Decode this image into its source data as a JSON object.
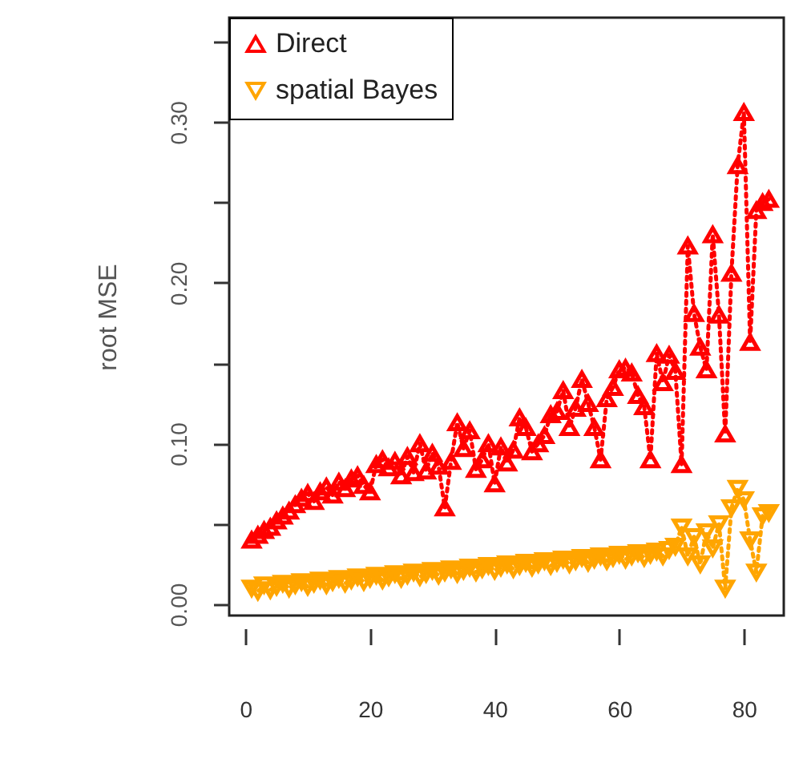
{
  "chart_data": {
    "type": "line",
    "ylabel": "root MSE",
    "x": [
      1,
      2,
      3,
      4,
      5,
      6,
      7,
      8,
      9,
      10,
      11,
      12,
      13,
      14,
      15,
      16,
      17,
      18,
      19,
      20,
      21,
      22,
      23,
      24,
      25,
      26,
      27,
      28,
      29,
      30,
      31,
      32,
      33,
      34,
      35,
      36,
      37,
      38,
      39,
      40,
      41,
      42,
      43,
      44,
      45,
      46,
      47,
      48,
      49,
      50,
      51,
      52,
      53,
      54,
      55,
      56,
      57,
      58,
      59,
      60,
      61,
      62,
      63,
      64,
      65,
      66,
      67,
      68,
      69,
      70,
      71,
      72,
      73,
      74,
      75,
      76,
      77,
      78,
      79,
      80,
      81,
      82,
      83,
      84
    ],
    "series": [
      {
        "name": "Direct",
        "color": "#ff0000",
        "marker": "triangle",
        "values": [
          0.04,
          0.043,
          0.046,
          0.048,
          0.052,
          0.055,
          0.058,
          0.062,
          0.066,
          0.069,
          0.064,
          0.07,
          0.073,
          0.068,
          0.076,
          0.072,
          0.078,
          0.08,
          0.074,
          0.07,
          0.087,
          0.09,
          0.085,
          0.089,
          0.08,
          0.092,
          0.082,
          0.1,
          0.083,
          0.094,
          0.086,
          0.06,
          0.089,
          0.113,
          0.097,
          0.108,
          0.084,
          0.09,
          0.1,
          0.075,
          0.098,
          0.088,
          0.096,
          0.116,
          0.11,
          0.095,
          0.1,
          0.105,
          0.118,
          0.12,
          0.133,
          0.11,
          0.122,
          0.14,
          0.125,
          0.11,
          0.09,
          0.128,
          0.135,
          0.146,
          0.147,
          0.144,
          0.13,
          0.123,
          0.09,
          0.156,
          0.138,
          0.155,
          0.145,
          0.087,
          0.223,
          0.181,
          0.16,
          0.146,
          0.23,
          0.18,
          0.106,
          0.206,
          0.273,
          0.306,
          0.163,
          0.245,
          0.25,
          0.252
        ]
      },
      {
        "name": "spatial Bayes",
        "color": "#ffa500",
        "marker": "triangle-down",
        "values": [
          0.01,
          0.008,
          0.012,
          0.009,
          0.011,
          0.013,
          0.01,
          0.012,
          0.014,
          0.011,
          0.013,
          0.015,
          0.012,
          0.014,
          0.016,
          0.013,
          0.015,
          0.017,
          0.014,
          0.016,
          0.018,
          0.015,
          0.017,
          0.019,
          0.016,
          0.018,
          0.02,
          0.017,
          0.019,
          0.021,
          0.018,
          0.02,
          0.022,
          0.019,
          0.021,
          0.023,
          0.02,
          0.022,
          0.024,
          0.021,
          0.023,
          0.025,
          0.022,
          0.024,
          0.026,
          0.023,
          0.025,
          0.027,
          0.024,
          0.026,
          0.028,
          0.025,
          0.027,
          0.029,
          0.026,
          0.028,
          0.03,
          0.027,
          0.029,
          0.031,
          0.028,
          0.03,
          0.032,
          0.029,
          0.031,
          0.033,
          0.03,
          0.034,
          0.036,
          0.048,
          0.03,
          0.042,
          0.025,
          0.045,
          0.035,
          0.05,
          0.01,
          0.06,
          0.072,
          0.065,
          0.04,
          0.02,
          0.055,
          0.057
        ]
      }
    ],
    "xlim": [
      -2.6,
      86.4
    ],
    "xticks": [
      0,
      20,
      40,
      60,
      80
    ],
    "ylim": [
      -0.007,
      0.365
    ],
    "yticks": [
      {
        "value": 0,
        "label": "0.00"
      },
      {
        "value": 0.05,
        "label": null
      },
      {
        "value": 0.1,
        "label": "0.10"
      },
      {
        "value": 0.15,
        "label": null
      },
      {
        "value": 0.2,
        "label": "0.20"
      },
      {
        "value": 0.25,
        "label": null
      },
      {
        "value": 0.3,
        "label": "0.30"
      },
      {
        "value": 0.35,
        "label": null
      }
    ],
    "line_style": "dotted",
    "grid": false,
    "legend": "top left"
  }
}
